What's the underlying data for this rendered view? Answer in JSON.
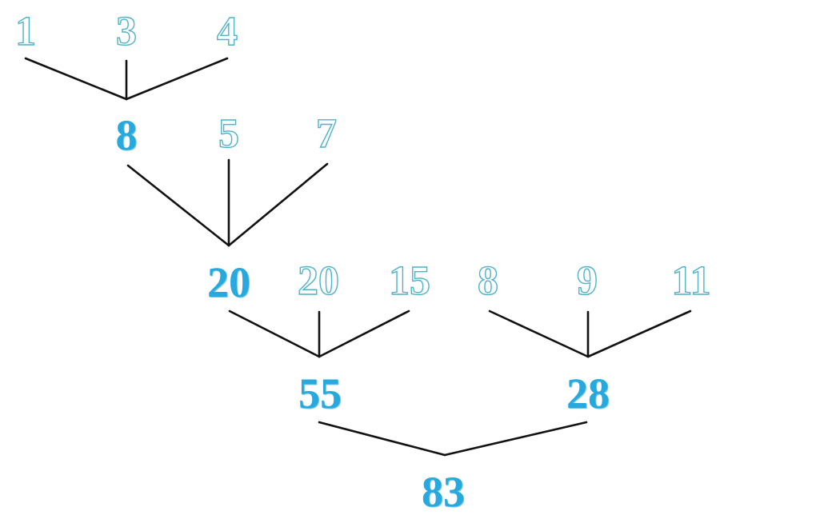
{
  "colors": {
    "outline_stroke": "#4fb3c8",
    "solid_fill": "#28a9de",
    "connector": "#111111",
    "background": "#ffffff"
  },
  "diagram": {
    "level1": {
      "inputs": [
        "1",
        "3",
        "4"
      ],
      "total": "8"
    },
    "level2": {
      "inputs": [
        "5",
        "7"
      ],
      "total": "20"
    },
    "level3_left": {
      "inputs": [
        "20",
        "15"
      ],
      "total": "55"
    },
    "level3_right": {
      "inputs": [
        "8",
        "9",
        "11"
      ],
      "total": "28"
    },
    "final": {
      "total": "83"
    }
  }
}
